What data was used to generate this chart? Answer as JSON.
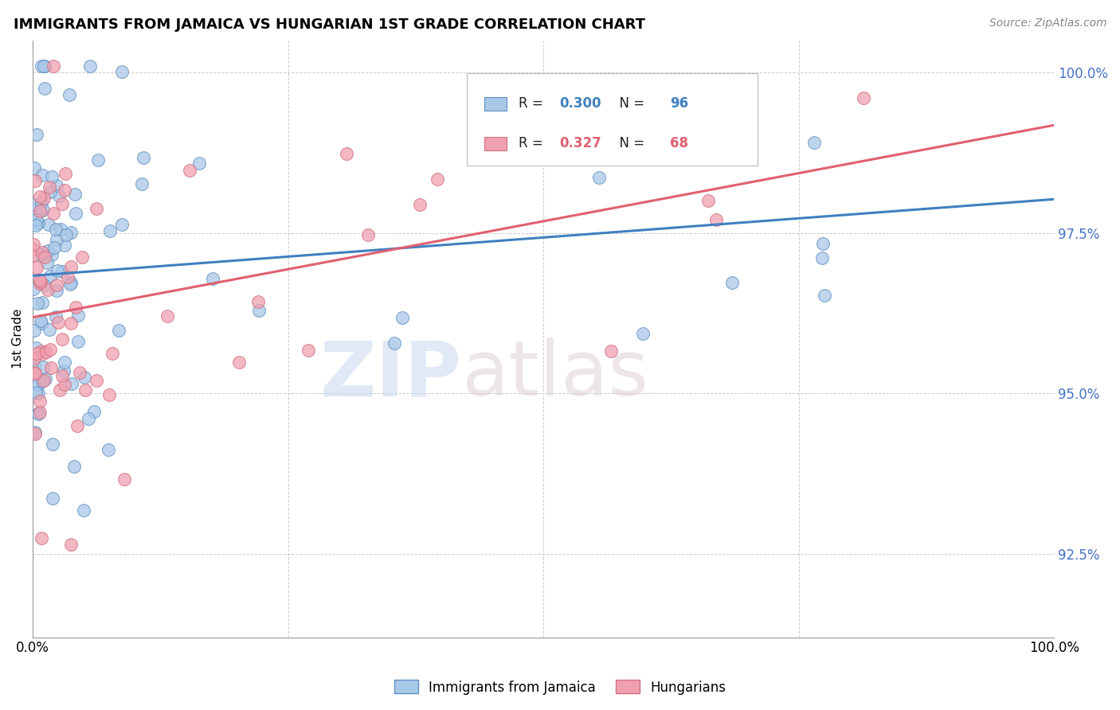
{
  "title": "IMMIGRANTS FROM JAMAICA VS HUNGARIAN 1ST GRADE CORRELATION CHART",
  "source": "Source: ZipAtlas.com",
  "ylabel": "1st Grade",
  "legend_labels": [
    "Immigrants from Jamaica",
    "Hungarians"
  ],
  "r_jamaica": 0.3,
  "n_jamaica": 96,
  "r_hungarian": 0.327,
  "n_hungarian": 68,
  "color_jamaica": "#a8c8e8",
  "color_hungarian": "#f0a0b0",
  "color_jamaica_line": "#4080c0",
  "color_hungarian_line": "#e06070",
  "color_jamaica_edge": "#6090c0",
  "color_hungarian_edge": "#d07080",
  "background_color": "#ffffff",
  "watermark_zip": "ZIP",
  "watermark_atlas": "atlas",
  "yticks": [
    0.925,
    0.95,
    0.975,
    1.0
  ],
  "ytick_labels": [
    "92.5%",
    "95.0%",
    "97.5%",
    "100.0%"
  ],
  "ylim_low": 0.912,
  "ylim_high": 1.005,
  "xlim_low": 0.0,
  "xlim_high": 1.0
}
